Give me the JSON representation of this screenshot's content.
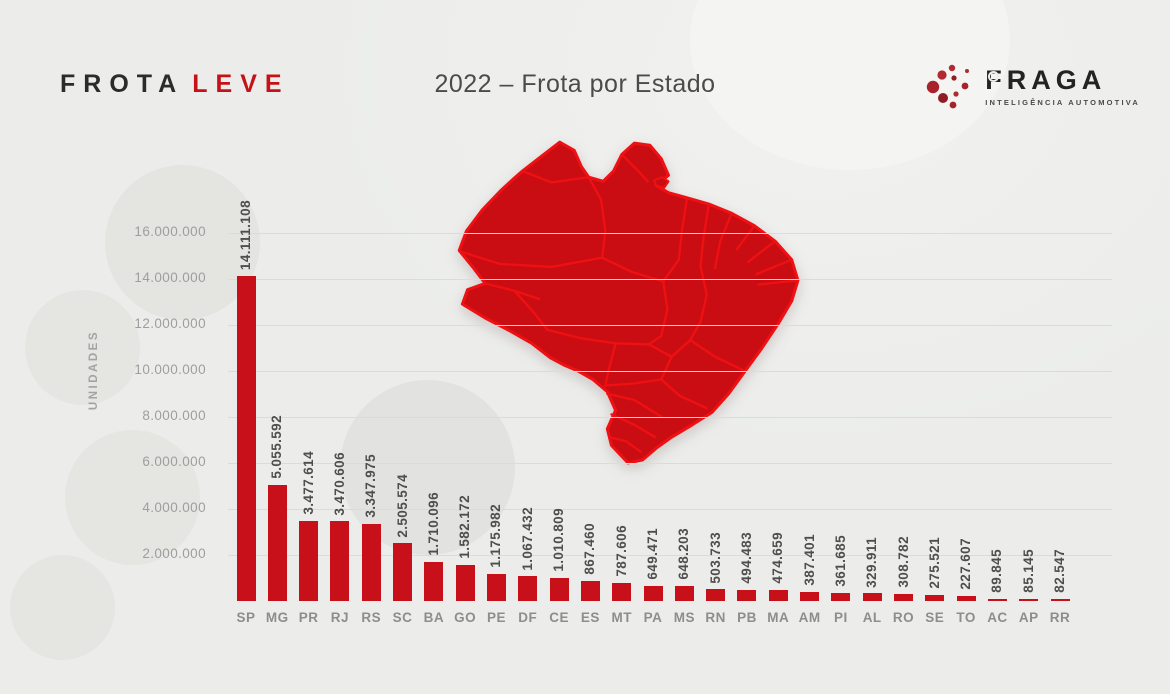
{
  "header": {
    "brand": {
      "part1": "FROTA",
      "part2": "LEVE"
    },
    "title": "2022 – Frota por Estado",
    "logo": {
      "name": "FRAGA",
      "tagline": "INTELIGÊNCIA AUTOMOTIVA",
      "icon": "dots-cluster-icon"
    }
  },
  "colors": {
    "background": "#ecedeb",
    "bar": "#c8101a",
    "accent_red": "#c41218",
    "map_fill": "#c90d12",
    "map_border": "#ee1013",
    "grid": "#dbdbd8",
    "axis_text": "#9e9e9e",
    "value_text": "#4e4e4e"
  },
  "map": {
    "label": "brazil-states-map"
  },
  "chart_data": {
    "type": "bar",
    "title": "2022 – Frota por Estado",
    "xlabel": "",
    "ylabel": "UNIDADES",
    "ylim": [
      0,
      16000000
    ],
    "grid": true,
    "legend": false,
    "yticks": [
      {
        "value": 2000000,
        "label": "2.000.000"
      },
      {
        "value": 4000000,
        "label": "4.000.000"
      },
      {
        "value": 6000000,
        "label": "6.000.000"
      },
      {
        "value": 8000000,
        "label": "8.000.000"
      },
      {
        "value": 10000000,
        "label": "10.000.000"
      },
      {
        "value": 12000000,
        "label": "12.000.000"
      },
      {
        "value": 14000000,
        "label": "14.000.000"
      },
      {
        "value": 16000000,
        "label": "16.000.000"
      }
    ],
    "categories": [
      "SP",
      "MG",
      "PR",
      "RJ",
      "RS",
      "SC",
      "BA",
      "GO",
      "PE",
      "DF",
      "CE",
      "ES",
      "MT",
      "PA",
      "MS",
      "RN",
      "PB",
      "MA",
      "AM",
      "PI",
      "AL",
      "RO",
      "SE",
      "TO",
      "AC",
      "AP",
      "RR"
    ],
    "values": [
      14111108,
      5055592,
      3477614,
      3470606,
      3347975,
      2505574,
      1710096,
      1582172,
      1175982,
      1067432,
      1010809,
      867460,
      787606,
      649471,
      648203,
      503733,
      494483,
      474659,
      387401,
      361685,
      329911,
      308782,
      275521,
      227607,
      89845,
      85145,
      82547
    ],
    "value_labels": [
      "14.111.108",
      "5.055.592",
      "3.477.614",
      "3.470.606",
      "3.347.975",
      "2.505.574",
      "1.710.096",
      "1.582.172",
      "1.175.982",
      "1.067.432",
      "1.010.809",
      "867.460",
      "787.606",
      "649.471",
      "648.203",
      "503.733",
      "494.483",
      "474.659",
      "387.401",
      "361.685",
      "329.911",
      "308.782",
      "275.521",
      "227.607",
      "89.845",
      "85.145",
      "82.547"
    ]
  }
}
